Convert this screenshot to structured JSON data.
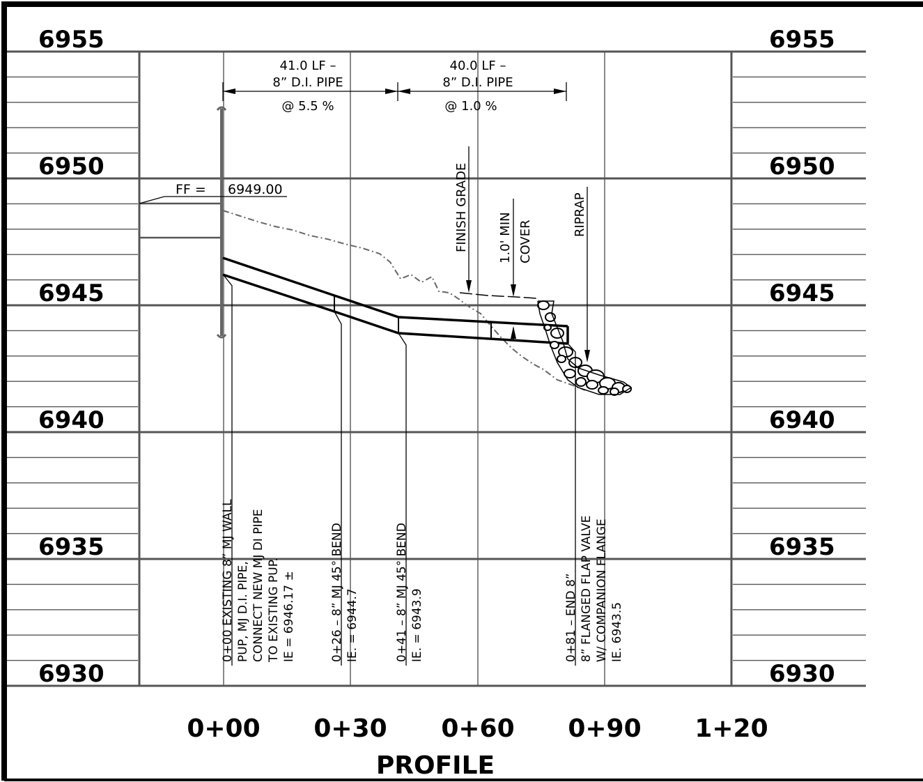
{
  "profile": {
    "title": "PROFILE",
    "elevations": [
      "6955",
      "6950",
      "6945",
      "6940",
      "6935",
      "6930"
    ],
    "stations": [
      "0+00",
      "0+30",
      "0+60",
      "0+90",
      "1+20"
    ]
  },
  "callouts": {
    "seg1": {
      "line1": "41.0 LF –",
      "line2": "8” D.I. PIPE",
      "line3": "@ 5.5 %"
    },
    "seg2": {
      "line1": "40.0 LF –",
      "line2": "8” D.I. PIPE",
      "line3": "@ 1.0 %"
    },
    "ff": {
      "label": "FF =",
      "value": "6949.00"
    },
    "finish_grade": "FINISH GRADE",
    "cover": {
      "line1": "1.0' MIN",
      "line2": "COVER"
    },
    "riprap": "RIPRAP"
  },
  "notes": {
    "sta0": {
      "line1": "0+00 EXISTING 8” MJ WALL",
      "line2": "PUP, MJ D.I. PIPE,",
      "line3": "CONNECT NEW MJ DI PIPE",
      "line4": "TO EXISTING PUP.",
      "line5": "IE = 6946.17 ±"
    },
    "sta26": {
      "line1": "0+26 – 8” MJ 45° BEND",
      "line2": "IE. = 6944.7"
    },
    "sta41": {
      "line1": "0+41 – 8” MJ 45° BEND",
      "line2": "IE. = 6943.9"
    },
    "sta81": {
      "line1": "0+81 – END 8”",
      "line2": "8” FLANGED FLAP VALVE",
      "line3": "W/ COMPANION FLANGE",
      "line4": "IE. 6943.5"
    }
  }
}
